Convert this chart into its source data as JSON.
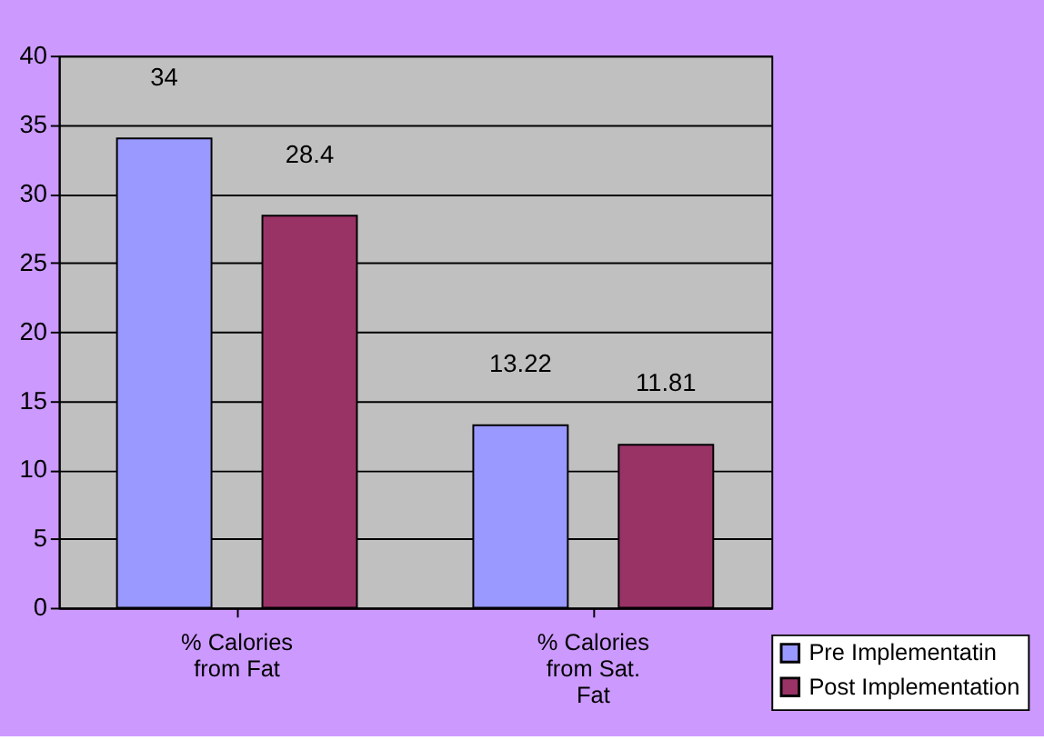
{
  "chart_data": {
    "type": "bar",
    "categories": [
      "% Calories from Fat",
      "% Calories from Sat. Fat"
    ],
    "series": [
      {
        "name": "Pre Implementatin",
        "color": "#9999ff",
        "values": [
          34,
          13.22
        ]
      },
      {
        "name": "Post Implementation",
        "color": "#993366",
        "values": [
          28.4,
          11.81
        ]
      }
    ],
    "ylim": [
      0,
      40
    ],
    "yticks": [
      0,
      5,
      10,
      15,
      20,
      25,
      30,
      35,
      40
    ],
    "grid": "y",
    "legend": "bottom right",
    "data_labels": true
  }
}
